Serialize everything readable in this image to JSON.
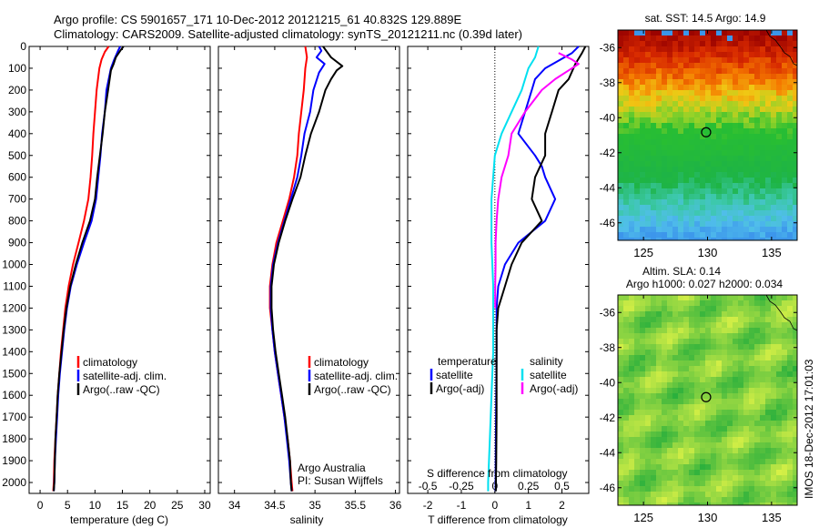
{
  "header": {
    "line1": "Argo profile: CS 5901657_171 10-Dec-2012 20121215_61 40.832S 129.889E",
    "line2": "Climatology: CARS2009. Satellite-adjusted climatology: synTS_20121211.nc (0.39d later)"
  },
  "colors": {
    "red": "#ff0000",
    "blue": "#0000ff",
    "black": "#000000",
    "cyan": "#00e0f0",
    "magenta": "#ff00ff"
  },
  "side_text": "IMOS 18-Dec-2012 17:01:03",
  "chart_data": [
    {
      "type": "line",
      "id": "temperature",
      "xlabel": "temperature (deg C)",
      "xlim": [
        -2,
        31
      ],
      "ylim": [
        2050,
        0
      ],
      "xticks": [
        0,
        5,
        10,
        15,
        20,
        25,
        30
      ],
      "yticks": [
        0,
        100,
        200,
        300,
        400,
        500,
        600,
        700,
        800,
        900,
        1000,
        1100,
        1200,
        1300,
        1400,
        1500,
        1600,
        1700,
        1800,
        1900,
        2000
      ],
      "legend": [
        "climatology",
        "satellite-adj. clim.",
        "Argo(..raw -QC)"
      ],
      "series": [
        {
          "name": "climatology",
          "color": "red",
          "points": [
            [
              12.5,
              0
            ],
            [
              11.8,
              25
            ],
            [
              11.2,
              60
            ],
            [
              10.8,
              100
            ],
            [
              10.3,
              200
            ],
            [
              10,
              300
            ],
            [
              9.7,
              400
            ],
            [
              9.5,
              500
            ],
            [
              9.2,
              600
            ],
            [
              8.8,
              700
            ],
            [
              8,
              800
            ],
            [
              7,
              900
            ],
            [
              6,
              1000
            ],
            [
              5.2,
              1100
            ],
            [
              4.6,
              1200
            ],
            [
              4.2,
              1300
            ],
            [
              3.8,
              1400
            ],
            [
              3.5,
              1500
            ],
            [
              3.2,
              1600
            ],
            [
              3,
              1700
            ],
            [
              2.8,
              1800
            ],
            [
              2.6,
              1900
            ],
            [
              2.5,
              2000
            ],
            [
              2.4,
              2040
            ]
          ]
        },
        {
          "name": "satellite-adj. clim.",
          "color": "blue",
          "points": [
            [
              14.6,
              0
            ],
            [
              14.2,
              20
            ],
            [
              13.5,
              60
            ],
            [
              12.9,
              100
            ],
            [
              12.1,
              200
            ],
            [
              11.8,
              300
            ],
            [
              11.3,
              400
            ],
            [
              11,
              500
            ],
            [
              10.6,
              600
            ],
            [
              10.2,
              700
            ],
            [
              9.4,
              800
            ],
            [
              8,
              900
            ],
            [
              6.7,
              1000
            ],
            [
              5.6,
              1100
            ],
            [
              4.9,
              1200
            ],
            [
              4.4,
              1300
            ],
            [
              4,
              1400
            ],
            [
              3.6,
              1500
            ],
            [
              3.3,
              1600
            ],
            [
              3.1,
              1700
            ],
            [
              2.9,
              1800
            ],
            [
              2.7,
              1900
            ],
            [
              2.6,
              2000
            ],
            [
              2.5,
              2040
            ]
          ]
        },
        {
          "name": "Argo(..raw -QC)",
          "color": "black",
          "points": [
            [
              15.2,
              0
            ],
            [
              14.6,
              20
            ],
            [
              13.8,
              50
            ],
            [
              13.4,
              80
            ],
            [
              12.9,
              110
            ],
            [
              12.4,
              200
            ],
            [
              11.8,
              300
            ],
            [
              11.4,
              400
            ],
            [
              10.9,
              500
            ],
            [
              10.4,
              600
            ],
            [
              10,
              700
            ],
            [
              9.1,
              800
            ],
            [
              7.7,
              900
            ],
            [
              6.5,
              1000
            ],
            [
              5.5,
              1100
            ],
            [
              4.8,
              1200
            ],
            [
              4.3,
              1300
            ],
            [
              3.9,
              1400
            ],
            [
              3.5,
              1500
            ],
            [
              3.2,
              1600
            ],
            [
              3,
              1700
            ],
            [
              2.8,
              1800
            ],
            [
              2.7,
              1900
            ],
            [
              2.6,
              2000
            ],
            [
              2.5,
              2040
            ]
          ]
        }
      ]
    },
    {
      "type": "line",
      "id": "salinity",
      "xlabel": "salinity",
      "xlim": [
        33.8,
        36.05
      ],
      "ylim": [
        2050,
        0
      ],
      "xticks": [
        34,
        34.5,
        35,
        35.5,
        36
      ],
      "xtick_labels": [
        "34",
        "34.5",
        "35",
        "35.5",
        "36"
      ],
      "legend": [
        "climatology",
        "satellite-adj. clim.",
        "Argo(..raw -QC)"
      ],
      "annotation": [
        "Argo Australia",
        "PI: Susan Wijffels"
      ],
      "series": [
        {
          "name": "climatology",
          "color": "red",
          "points": [
            [
              34.88,
              0
            ],
            [
              34.9,
              50
            ],
            [
              34.88,
              100
            ],
            [
              34.86,
              200
            ],
            [
              34.83,
              300
            ],
            [
              34.8,
              400
            ],
            [
              34.78,
              500
            ],
            [
              34.74,
              600
            ],
            [
              34.68,
              700
            ],
            [
              34.6,
              800
            ],
            [
              34.52,
              900
            ],
            [
              34.47,
              1000
            ],
            [
              34.44,
              1100
            ],
            [
              34.44,
              1200
            ],
            [
              34.47,
              1300
            ],
            [
              34.5,
              1400
            ],
            [
              34.54,
              1500
            ],
            [
              34.58,
              1600
            ],
            [
              34.62,
              1700
            ],
            [
              34.66,
              1800
            ],
            [
              34.69,
              1900
            ],
            [
              34.71,
              2000
            ],
            [
              34.72,
              2040
            ]
          ]
        },
        {
          "name": "satellite-adj. clim.",
          "color": "blue",
          "points": [
            [
              35.05,
              0
            ],
            [
              35.08,
              20
            ],
            [
              35.02,
              50
            ],
            [
              35.12,
              80
            ],
            [
              35.05,
              120
            ],
            [
              34.98,
              200
            ],
            [
              34.94,
              300
            ],
            [
              34.87,
              400
            ],
            [
              34.83,
              500
            ],
            [
              34.78,
              600
            ],
            [
              34.7,
              700
            ],
            [
              34.62,
              800
            ],
            [
              34.54,
              900
            ],
            [
              34.48,
              1000
            ],
            [
              34.45,
              1100
            ],
            [
              34.45,
              1200
            ],
            [
              34.47,
              1300
            ],
            [
              34.5,
              1400
            ],
            [
              34.54,
              1500
            ],
            [
              34.58,
              1600
            ],
            [
              34.62,
              1700
            ],
            [
              34.65,
              1800
            ],
            [
              34.68,
              1900
            ],
            [
              34.7,
              2000
            ],
            [
              34.71,
              2040
            ]
          ]
        },
        {
          "name": "Argo(..raw -QC)",
          "color": "black",
          "points": [
            [
              35.1,
              0
            ],
            [
              35.14,
              20
            ],
            [
              35.2,
              50
            ],
            [
              35.34,
              90
            ],
            [
              35.27,
              110
            ],
            [
              35.2,
              150
            ],
            [
              35.13,
              200
            ],
            [
              35.05,
              300
            ],
            [
              34.95,
              400
            ],
            [
              34.88,
              500
            ],
            [
              34.82,
              600
            ],
            [
              34.72,
              700
            ],
            [
              34.63,
              800
            ],
            [
              34.55,
              900
            ],
            [
              34.49,
              1000
            ],
            [
              34.46,
              1100
            ],
            [
              34.46,
              1200
            ],
            [
              34.48,
              1300
            ],
            [
              34.51,
              1400
            ],
            [
              34.55,
              1500
            ],
            [
              34.59,
              1600
            ],
            [
              34.63,
              1700
            ],
            [
              34.66,
              1800
            ],
            [
              34.69,
              1900
            ],
            [
              34.7,
              2000
            ],
            [
              34.71,
              2040
            ]
          ]
        }
      ]
    },
    {
      "type": "line",
      "id": "difference",
      "xlabel": "T difference from climatology",
      "xlabel_top": "S difference from climatology",
      "xlim": [
        -2.6,
        2.8
      ],
      "ylim": [
        2050,
        0
      ],
      "xticks": [
        -2,
        -1,
        0,
        1,
        2
      ],
      "xtick_labels": [
        "-2",
        "-1",
        "0",
        "1",
        "2"
      ],
      "sticks": [
        -2,
        -1,
        0,
        1,
        2
      ],
      "stick_labels": [
        "-0.5",
        "-0.25",
        "0",
        "0.25",
        "0.5"
      ],
      "zero_line": 0,
      "legend_headers": [
        "temperature",
        "salinity"
      ],
      "legend_left": [
        "satellite",
        "Argo(-adj)"
      ],
      "legend_right": [
        "satellite",
        "Argo(-adj)"
      ],
      "series": [
        {
          "name": "temperature satellite",
          "color": "blue",
          "points": [
            [
              2.5,
              0
            ],
            [
              2.3,
              30
            ],
            [
              1.5,
              100
            ],
            [
              1.2,
              150
            ],
            [
              1.1,
              200
            ],
            [
              0.9,
              300
            ],
            [
              0.7,
              400
            ],
            [
              1.2,
              500
            ],
            [
              1.4,
              550
            ],
            [
              1.5,
              600
            ],
            [
              1.8,
              700
            ],
            [
              1.5,
              800
            ],
            [
              0.7,
              900
            ],
            [
              0.3,
              1000
            ],
            [
              0.1,
              1100
            ],
            [
              0.05,
              1200
            ],
            [
              0.05,
              1400
            ],
            [
              0.04,
              1600
            ],
            [
              0.03,
              1800
            ],
            [
              0.02,
              2000
            ],
            [
              0.02,
              2040
            ]
          ]
        },
        {
          "name": "temperature Argo(-adj)",
          "color": "black",
          "points": [
            [
              2.7,
              0
            ],
            [
              2.6,
              30
            ],
            [
              2.4,
              80
            ],
            [
              2.2,
              150
            ],
            [
              1.9,
              200
            ],
            [
              1.7,
              300
            ],
            [
              1.5,
              400
            ],
            [
              1.5,
              500
            ],
            [
              1.2,
              600
            ],
            [
              1.1,
              700
            ],
            [
              1.4,
              800
            ],
            [
              0.8,
              900
            ],
            [
              0.5,
              1000
            ],
            [
              0.3,
              1100
            ],
            [
              0.1,
              1200
            ],
            [
              0.05,
              1300
            ],
            [
              0.05,
              1500
            ],
            [
              0.05,
              1700
            ],
            [
              0.04,
              1900
            ],
            [
              0.03,
              2040
            ]
          ]
        },
        {
          "name": "salinity satellite",
          "color": "cyan",
          "points": [
            [
              1.3,
              0
            ],
            [
              1.2,
              50
            ],
            [
              1.0,
              100
            ],
            [
              0.8,
              200
            ],
            [
              0.5,
              300
            ],
            [
              0.2,
              400
            ],
            [
              0.0,
              500
            ],
            [
              -0.1,
              700
            ],
            [
              -0.1,
              900
            ],
            [
              -0.05,
              1100
            ],
            [
              -0.05,
              1200
            ],
            [
              -0.05,
              1400
            ],
            [
              -0.1,
              1600
            ],
            [
              -0.15,
              1800
            ],
            [
              -0.2,
              2000
            ],
            [
              -0.2,
              2040
            ]
          ]
        },
        {
          "name": "salinity Argo(-adj)",
          "color": "magenta",
          "points": [
            [
              1.9,
              30
            ],
            [
              2.3,
              60
            ],
            [
              2.5,
              80
            ],
            [
              2.2,
              110
            ],
            [
              1.8,
              150
            ],
            [
              1.4,
              200
            ],
            [
              0.9,
              300
            ],
            [
              0.5,
              400
            ],
            [
              0.4,
              500
            ],
            [
              0.2,
              600
            ],
            [
              0.1,
              700
            ],
            [
              0.05,
              800
            ],
            [
              0.02,
              900
            ],
            [
              0.02,
              1000
            ],
            [
              0.01,
              1100
            ],
            [
              0.01,
              1200
            ]
          ]
        }
      ]
    },
    {
      "type": "heatmap",
      "id": "sst-map",
      "title": "sat. SST: 14.5 Argo: 14.9",
      "xlim": [
        123,
        137
      ],
      "ylim": [
        -47,
        -35
      ],
      "xticks": [
        125,
        130,
        135
      ],
      "yticks": [
        -36,
        -38,
        -40,
        -42,
        -44,
        -46
      ],
      "marker": [
        129.889,
        -40.832
      ]
    },
    {
      "type": "heatmap",
      "id": "sla-map",
      "title_line1": "Altim. SLA: 0.14",
      "title_line2": "Argo h1000: 0.027 h2000: 0.034",
      "xlim": [
        123,
        137
      ],
      "ylim": [
        -47,
        -35
      ],
      "xticks": [
        125,
        130,
        135
      ],
      "yticks": [
        -36,
        -38,
        -40,
        -42,
        -44,
        -46
      ],
      "marker": [
        129.889,
        -40.832
      ]
    }
  ]
}
